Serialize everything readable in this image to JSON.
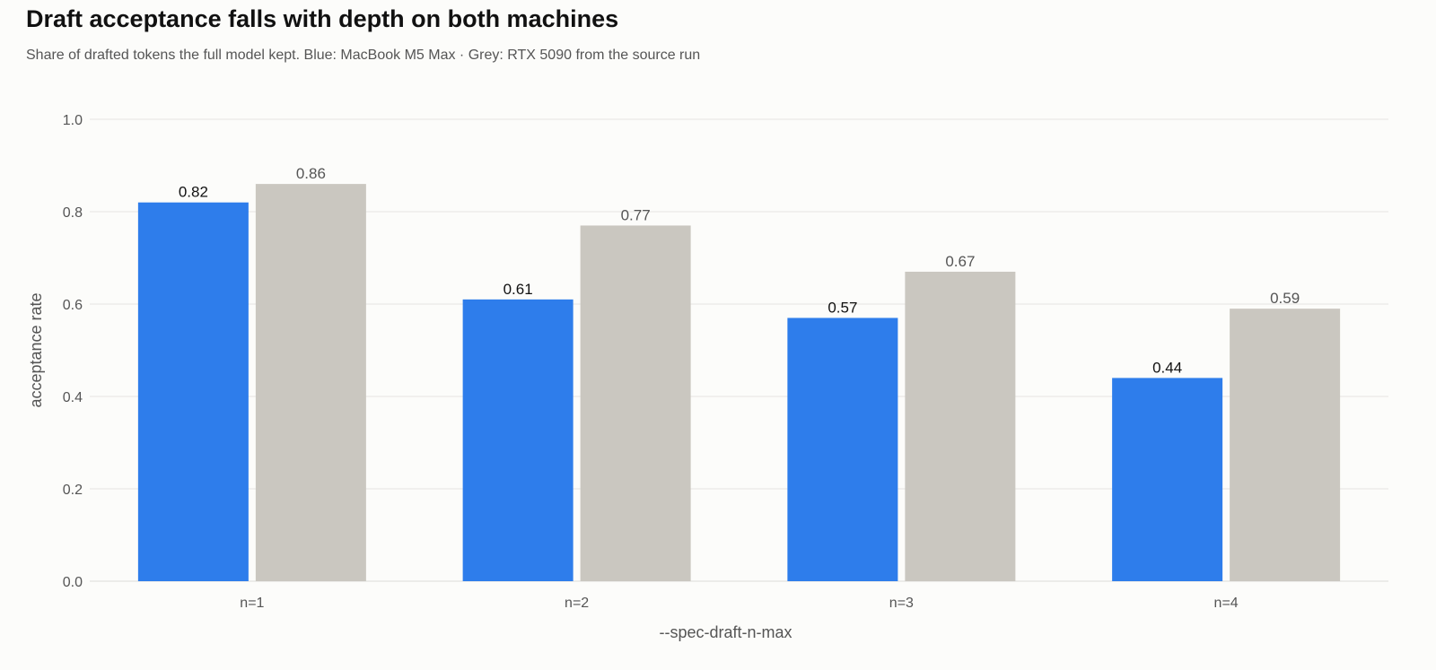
{
  "header": {
    "title": "Draft acceptance falls with depth on both machines",
    "subtitle": "Share of drafted tokens the full model kept. Blue: MacBook M5 Max · Grey: RTX 5090 from the source run"
  },
  "chart_data": {
    "type": "bar",
    "categories": [
      "n=1",
      "n=2",
      "n=3",
      "n=4"
    ],
    "series": [
      {
        "values": [
          0.82,
          0.61,
          0.57,
          0.44
        ],
        "color": "#2e7deb"
      },
      {
        "values": [
          0.86,
          0.77,
          0.67,
          0.59
        ],
        "color": "#cac7c0"
      }
    ],
    "xlabel": "--spec-draft-n-max",
    "ylabel": "acceptance rate",
    "ylim": [
      0,
      1.0
    ],
    "yticks": [
      0.0,
      0.2,
      0.4,
      0.6,
      0.8,
      1.0
    ],
    "grid": true,
    "legend": "none"
  }
}
